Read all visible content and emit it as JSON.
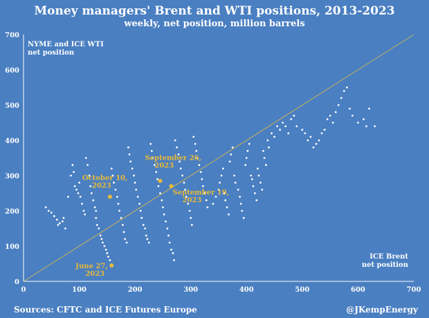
{
  "chart_data": {
    "type": "scatter",
    "title": "Money managers' Brent and WTI positions, 2013-2023",
    "subtitle": "weekly, net position, million barrels",
    "ylabel_lines": [
      "NYME and ICE WTI",
      "net position"
    ],
    "xlabel_lines": [
      "ICE Brent",
      "net position"
    ],
    "xlim": [
      0,
      700
    ],
    "ylim": [
      0,
      700
    ],
    "x_ticks": [
      0,
      100,
      200,
      300,
      400,
      500,
      600,
      700
    ],
    "y_ticks": [
      0,
      100,
      200,
      300,
      400,
      500,
      600,
      700
    ],
    "grid": false,
    "reference_line": {
      "x": [
        0,
        700
      ],
      "y": [
        0,
        700
      ]
    },
    "colors": {
      "background": "#4a7fc1",
      "points": "#ffffff",
      "highlight": "#e8b93a",
      "reference_line": "#c8b15a"
    },
    "series": [
      {
        "values": [
          [
            40,
            210
          ],
          [
            45,
            200
          ],
          [
            50,
            195
          ],
          [
            55,
            185
          ],
          [
            60,
            175
          ],
          [
            62,
            160
          ],
          [
            65,
            165
          ],
          [
            70,
            170
          ],
          [
            72,
            180
          ],
          [
            75,
            150
          ],
          [
            80,
            240
          ],
          [
            85,
            300
          ],
          [
            88,
            330
          ],
          [
            90,
            310
          ],
          [
            92,
            270
          ],
          [
            95,
            260
          ],
          [
            98,
            250
          ],
          [
            100,
            280
          ],
          [
            102,
            240
          ],
          [
            105,
            220
          ],
          [
            108,
            200
          ],
          [
            110,
            190
          ],
          [
            112,
            350
          ],
          [
            115,
            330
          ],
          [
            118,
            300
          ],
          [
            120,
            270
          ],
          [
            122,
            250
          ],
          [
            125,
            230
          ],
          [
            128,
            210
          ],
          [
            130,
            200
          ],
          [
            130,
            180
          ],
          [
            132,
            160
          ],
          [
            135,
            150
          ],
          [
            138,
            130
          ],
          [
            140,
            120
          ],
          [
            142,
            110
          ],
          [
            145,
            100
          ],
          [
            148,
            90
          ],
          [
            150,
            80
          ],
          [
            152,
            70
          ],
          [
            155,
            60
          ],
          [
            158,
            320
          ],
          [
            160,
            300
          ],
          [
            162,
            280
          ],
          [
            165,
            260
          ],
          [
            168,
            240
          ],
          [
            170,
            220
          ],
          [
            172,
            200
          ],
          [
            175,
            180
          ],
          [
            178,
            160
          ],
          [
            180,
            140
          ],
          [
            182,
            120
          ],
          [
            185,
            110
          ],
          [
            188,
            380
          ],
          [
            190,
            360
          ],
          [
            192,
            340
          ],
          [
            195,
            320
          ],
          [
            198,
            300
          ],
          [
            200,
            280
          ],
          [
            202,
            260
          ],
          [
            205,
            240
          ],
          [
            208,
            220
          ],
          [
            210,
            200
          ],
          [
            212,
            180
          ],
          [
            215,
            160
          ],
          [
            218,
            150
          ],
          [
            220,
            130
          ],
          [
            222,
            120
          ],
          [
            225,
            110
          ],
          [
            228,
            390
          ],
          [
            230,
            370
          ],
          [
            232,
            350
          ],
          [
            235,
            330
          ],
          [
            238,
            310
          ],
          [
            240,
            290
          ],
          [
            242,
            270
          ],
          [
            245,
            250
          ],
          [
            248,
            230
          ],
          [
            250,
            210
          ],
          [
            252,
            190
          ],
          [
            255,
            170
          ],
          [
            258,
            150
          ],
          [
            260,
            130
          ],
          [
            262,
            110
          ],
          [
            265,
            90
          ],
          [
            268,
            80
          ],
          [
            270,
            60
          ],
          [
            272,
            400
          ],
          [
            275,
            380
          ],
          [
            278,
            360
          ],
          [
            280,
            340
          ],
          [
            282,
            320
          ],
          [
            285,
            300
          ],
          [
            288,
            280
          ],
          [
            290,
            260
          ],
          [
            292,
            240
          ],
          [
            295,
            220
          ],
          [
            298,
            200
          ],
          [
            300,
            180
          ],
          [
            302,
            160
          ],
          [
            305,
            410
          ],
          [
            308,
            390
          ],
          [
            310,
            370
          ],
          [
            312,
            350
          ],
          [
            315,
            330
          ],
          [
            318,
            310
          ],
          [
            320,
            290
          ],
          [
            322,
            270
          ],
          [
            325,
            250
          ],
          [
            328,
            230
          ],
          [
            330,
            210
          ],
          [
            340,
            220
          ],
          [
            345,
            240
          ],
          [
            350,
            260
          ],
          [
            352,
            280
          ],
          [
            355,
            300
          ],
          [
            358,
            320
          ],
          [
            360,
            250
          ],
          [
            362,
            230
          ],
          [
            365,
            210
          ],
          [
            368,
            190
          ],
          [
            370,
            340
          ],
          [
            372,
            360
          ],
          [
            375,
            380
          ],
          [
            378,
            300
          ],
          [
            380,
            280
          ],
          [
            385,
            260
          ],
          [
            388,
            240
          ],
          [
            390,
            220
          ],
          [
            392,
            200
          ],
          [
            395,
            180
          ],
          [
            398,
            330
          ],
          [
            400,
            350
          ],
          [
            402,
            370
          ],
          [
            405,
            390
          ],
          [
            408,
            300
          ],
          [
            410,
            290
          ],
          [
            412,
            270
          ],
          [
            415,
            250
          ],
          [
            418,
            230
          ],
          [
            420,
            320
          ],
          [
            422,
            300
          ],
          [
            425,
            280
          ],
          [
            428,
            260
          ],
          [
            430,
            370
          ],
          [
            432,
            350
          ],
          [
            435,
            330
          ],
          [
            438,
            400
          ],
          [
            440,
            380
          ],
          [
            445,
            420
          ],
          [
            450,
            410
          ],
          [
            455,
            440
          ],
          [
            460,
            430
          ],
          [
            465,
            450
          ],
          [
            470,
            440
          ],
          [
            475,
            420
          ],
          [
            480,
            460
          ],
          [
            485,
            470
          ],
          [
            490,
            440
          ],
          [
            500,
            430
          ],
          [
            505,
            420
          ],
          [
            510,
            400
          ],
          [
            515,
            410
          ],
          [
            520,
            380
          ],
          [
            525,
            390
          ],
          [
            530,
            400
          ],
          [
            535,
            420
          ],
          [
            540,
            430
          ],
          [
            545,
            460
          ],
          [
            550,
            470
          ],
          [
            555,
            450
          ],
          [
            560,
            480
          ],
          [
            565,
            500
          ],
          [
            570,
            520
          ],
          [
            575,
            540
          ],
          [
            580,
            550
          ],
          [
            585,
            490
          ],
          [
            590,
            470
          ],
          [
            600,
            450
          ],
          [
            610,
            460
          ],
          [
            615,
            440
          ],
          [
            620,
            490
          ],
          [
            630,
            440
          ]
        ]
      }
    ],
    "highlighted_points": [
      {
        "label_lines": [
          "September 26,",
          "2023"
        ],
        "x": 245,
        "y": 285
      },
      {
        "label_lines": [
          "October 10,",
          "2023"
        ],
        "x": 155,
        "y": 240
      },
      {
        "label_lines": [
          "September 19,",
          "2023"
        ],
        "x": 265,
        "y": 270
      },
      {
        "label_lines": [
          "June 27,",
          "2023"
        ],
        "x": 158,
        "y": 45
      }
    ]
  },
  "footer": {
    "source": "Sources: CFTC and ICE Futures Europe",
    "credit": "@JKempEnergy"
  }
}
